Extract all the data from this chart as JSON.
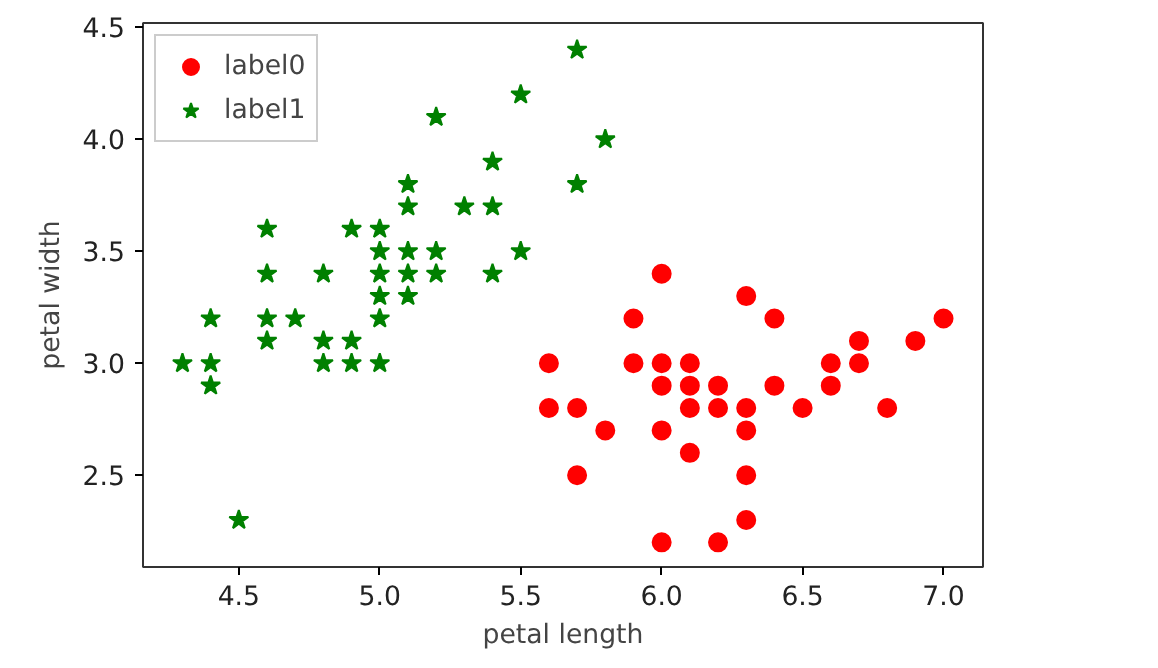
{
  "chart_data": {
    "type": "scatter",
    "xlabel": "petal length",
    "ylabel": "petal width",
    "xlim": [
      4.16,
      7.14
    ],
    "ylim": [
      2.09,
      4.52
    ],
    "xticks": [
      {
        "value": 4.5,
        "label": "4.5"
      },
      {
        "value": 5,
        "label": "5.0"
      },
      {
        "value": 5.5,
        "label": "5.5"
      },
      {
        "value": 6,
        "label": "6.0"
      },
      {
        "value": 6.5,
        "label": "6.5"
      },
      {
        "value": 7,
        "label": "7.0"
      }
    ],
    "yticks": [
      {
        "value": 2.5,
        "label": "2.5"
      },
      {
        "value": 3,
        "label": "3.0"
      },
      {
        "value": 3.5,
        "label": "3.5"
      },
      {
        "value": 4,
        "label": "4.0"
      },
      {
        "value": 4.5,
        "label": "4.5"
      }
    ],
    "grid": false,
    "legend": "top left",
    "series": [
      {
        "name": "label0",
        "color": "#ff0000",
        "marker": "circle",
        "x": [
          6.0,
          6.3,
          5.9,
          6.4,
          7.0,
          6.7,
          6.9,
          5.6,
          5.9,
          6.0,
          6.1,
          6.6,
          6.7,
          6.0,
          6.1,
          6.2,
          6.4,
          6.6,
          5.6,
          5.7,
          6.1,
          6.2,
          6.3,
          6.5,
          6.8,
          5.8,
          6.0,
          6.3,
          6.1,
          5.7,
          6.3,
          6.3,
          6.0,
          6.2
        ],
        "values": [
          3.4,
          3.3,
          3.2,
          3.2,
          3.2,
          3.1,
          3.1,
          3.0,
          3.0,
          3.0,
          3.0,
          3.0,
          3.0,
          2.9,
          2.9,
          2.9,
          2.9,
          2.9,
          2.8,
          2.8,
          2.8,
          2.8,
          2.8,
          2.8,
          2.8,
          2.7,
          2.7,
          2.7,
          2.6,
          2.5,
          2.5,
          2.3,
          2.2,
          2.2
        ]
      },
      {
        "name": "label1",
        "color": "#008000",
        "marker": "star",
        "x": [
          4.3,
          4.4,
          4.4,
          4.4,
          4.5,
          4.6,
          4.6,
          4.6,
          4.6,
          4.7,
          4.8,
          4.8,
          4.8,
          4.9,
          4.9,
          4.9,
          5.0,
          5.0,
          5.0,
          5.0,
          5.0,
          5.0,
          5.1,
          5.1,
          5.1,
          5.1,
          5.1,
          5.2,
          5.2,
          5.2,
          5.3,
          5.4,
          5.4,
          5.4,
          5.5,
          5.5,
          5.7,
          5.7,
          5.8
        ],
        "values": [
          3.0,
          3.0,
          2.9,
          3.2,
          2.3,
          3.6,
          3.4,
          3.2,
          3.1,
          3.2,
          3.4,
          3.1,
          3.0,
          3.6,
          3.1,
          3.0,
          3.6,
          3.5,
          3.4,
          3.3,
          3.2,
          3.0,
          3.8,
          3.7,
          3.5,
          3.4,
          3.3,
          3.5,
          3.4,
          4.1,
          3.7,
          3.9,
          3.7,
          3.4,
          4.2,
          3.5,
          4.4,
          3.8,
          4.0
        ]
      }
    ]
  }
}
